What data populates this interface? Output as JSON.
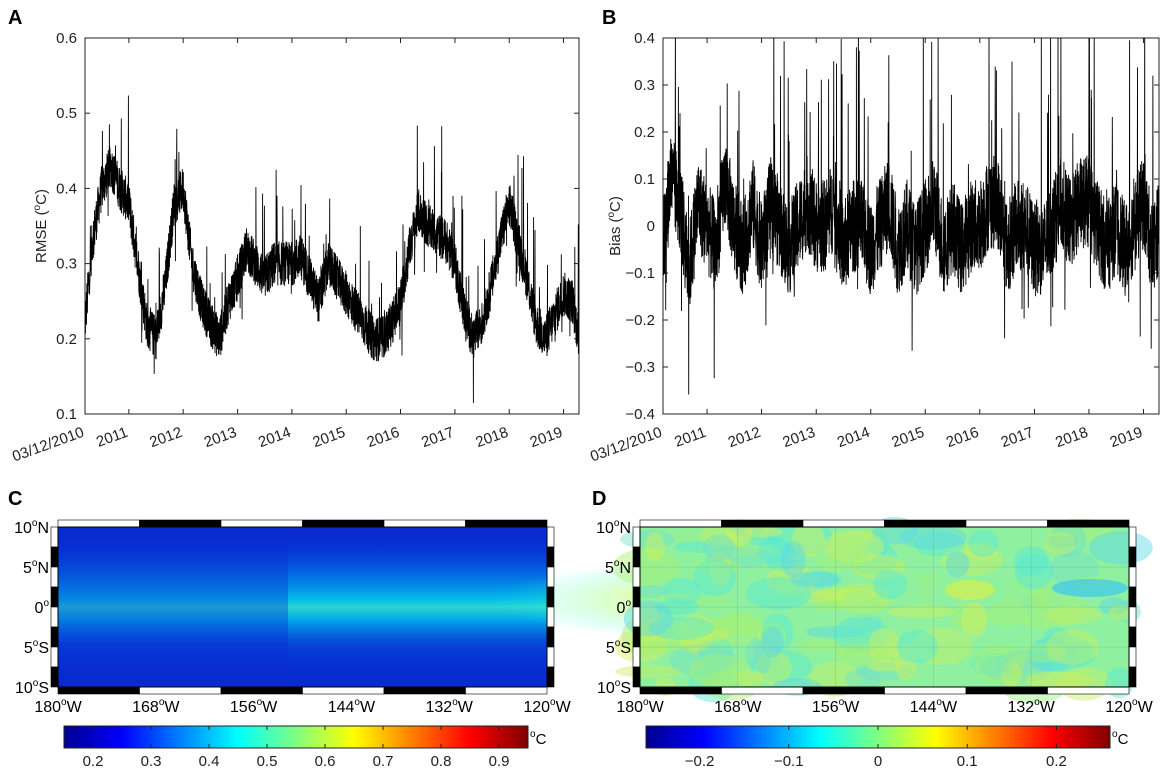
{
  "chart_data": [
    {
      "panel": "A",
      "type": "line",
      "ylabel": "RMSE (oC)",
      "ylabel_main": "RMSE (",
      "ylabel_sup": "o",
      "ylabel_end": "C)",
      "ylim": [
        0.1,
        0.6
      ],
      "yticks": [
        0.1,
        0.2,
        0.3,
        0.4,
        0.5,
        0.6
      ],
      "yticklabels": [
        "0.1",
        "0.2",
        "0.3",
        "0.4",
        "0.5",
        "0.6"
      ],
      "xlim": [
        "2010-03-12",
        "2019-04-15"
      ],
      "xticks": [
        "2010-03-12",
        "2011-01-01",
        "2012-01-01",
        "2013-01-01",
        "2014-01-01",
        "2015-01-01",
        "2016-01-01",
        "2017-01-01",
        "2018-01-01",
        "2019-01-01"
      ],
      "xticklabels": [
        "03/12/2010",
        "2011",
        "2012",
        "2013",
        "2014",
        "2015",
        "2016",
        "2017",
        "2018",
        "2019"
      ],
      "series": [
        {
          "x": [
            "2010-03-12",
            "2010-05-01",
            "2010-07-01",
            "2010-09-01",
            "2010-11-01",
            "2011-01-01",
            "2011-03-01",
            "2011-05-01",
            "2011-07-01",
            "2011-09-01",
            "2011-11-01",
            "2012-01-01",
            "2012-03-01",
            "2012-05-01",
            "2012-07-01",
            "2012-09-01",
            "2012-11-01",
            "2013-01-01",
            "2013-03-01",
            "2013-05-01",
            "2013-07-01",
            "2013-09-01",
            "2013-11-01",
            "2014-01-01",
            "2014-03-01",
            "2014-05-01",
            "2014-07-01",
            "2014-09-01",
            "2014-11-01",
            "2015-01-01",
            "2015-03-01",
            "2015-05-01",
            "2015-07-01",
            "2015-09-01",
            "2015-11-01",
            "2016-01-01",
            "2016-03-01",
            "2016-05-01",
            "2016-07-01",
            "2016-09-01",
            "2016-11-01",
            "2017-01-01",
            "2017-03-01",
            "2017-05-01",
            "2017-07-01",
            "2017-09-01",
            "2017-11-01",
            "2018-01-01",
            "2018-03-01",
            "2018-05-01",
            "2018-07-01",
            "2018-09-01",
            "2018-11-01",
            "2019-01-01",
            "2019-03-01",
            "2019-04-15"
          ],
          "y": [
            0.22,
            0.33,
            0.4,
            0.43,
            0.4,
            0.38,
            0.3,
            0.22,
            0.2,
            0.27,
            0.38,
            0.4,
            0.3,
            0.25,
            0.22,
            0.2,
            0.25,
            0.28,
            0.32,
            0.3,
            0.28,
            0.3,
            0.3,
            0.3,
            0.31,
            0.28,
            0.25,
            0.3,
            0.28,
            0.26,
            0.24,
            0.22,
            0.2,
            0.2,
            0.22,
            0.25,
            0.32,
            0.37,
            0.35,
            0.34,
            0.33,
            0.3,
            0.24,
            0.2,
            0.22,
            0.27,
            0.33,
            0.38,
            0.33,
            0.28,
            0.22,
            0.2,
            0.23,
            0.26,
            0.25,
            0.2
          ]
        }
      ]
    },
    {
      "panel": "B",
      "type": "line",
      "ylabel": "Bias (oC)",
      "ylabel_main": "Bias (",
      "ylabel_sup": "o",
      "ylabel_end": "C)",
      "ylim": [
        -0.4,
        0.4
      ],
      "yticks": [
        -0.4,
        -0.3,
        -0.2,
        -0.1,
        0,
        0.1,
        0.2,
        0.3,
        0.4
      ],
      "yticklabels": [
        "−0.4",
        "−0.3",
        "−0.2",
        "−0.1",
        "0",
        "0.1",
        "0.2",
        "0.3",
        "0.4"
      ],
      "xlim": [
        "2010-03-12",
        "2019-04-15"
      ],
      "xticks": [
        "2010-03-12",
        "2011-01-01",
        "2012-01-01",
        "2013-01-01",
        "2014-01-01",
        "2015-01-01",
        "2016-01-01",
        "2017-01-01",
        "2018-01-01",
        "2019-01-01"
      ],
      "xticklabels": [
        "03/12/2010",
        "2011",
        "2012",
        "2013",
        "2014",
        "2015",
        "2016",
        "2017",
        "2018",
        "2019"
      ],
      "series": [
        {
          "x": [
            "2010-03-12",
            "2010-05-01",
            "2010-07-01",
            "2010-09-01",
            "2010-11-01",
            "2011-01-01",
            "2011-03-01",
            "2011-05-01",
            "2011-07-01",
            "2011-09-01",
            "2011-11-01",
            "2012-01-01",
            "2012-03-01",
            "2012-05-01",
            "2012-07-01",
            "2012-09-01",
            "2012-11-01",
            "2013-01-01",
            "2013-03-01",
            "2013-05-01",
            "2013-07-01",
            "2013-09-01",
            "2013-11-01",
            "2014-01-01",
            "2014-03-01",
            "2014-05-01",
            "2014-07-01",
            "2014-09-01",
            "2014-11-01",
            "2015-01-01",
            "2015-03-01",
            "2015-05-01",
            "2015-07-01",
            "2015-09-01",
            "2015-11-01",
            "2016-01-01",
            "2016-03-01",
            "2016-05-01",
            "2016-07-01",
            "2016-09-01",
            "2016-11-01",
            "2017-01-01",
            "2017-03-01",
            "2017-05-01",
            "2017-07-01",
            "2017-09-01",
            "2017-11-01",
            "2018-01-01",
            "2018-03-01",
            "2018-05-01",
            "2018-07-01",
            "2018-09-01",
            "2018-11-01",
            "2019-01-01",
            "2019-03-01",
            "2019-04-15"
          ],
          "y": [
            -0.05,
            0.1,
            0.05,
            -0.1,
            0.05,
            0,
            -0.05,
            0.1,
            0,
            -0.05,
            0.05,
            -0.05,
            0.05,
            0,
            -0.05,
            0,
            0.05,
            0,
            0,
            0.05,
            -0.05,
            0,
            0,
            -0.05,
            0,
            0.05,
            -0.05,
            0,
            -0.05,
            0,
            0.05,
            -0.05,
            0,
            -0.05,
            0,
            0,
            0.05,
            0.05,
            -0.05,
            0,
            0,
            -0.05,
            -0.05,
            0,
            0.05,
            0,
            0.05,
            0.05,
            0,
            -0.05,
            0,
            -0.05,
            0,
            0.05,
            -0.05,
            0
          ]
        }
      ]
    },
    {
      "panel": "C",
      "type": "heatmap",
      "unit": "oC",
      "unit_sup": "o",
      "unit_end": "C",
      "xticklabels": [
        {
          "deg": "180",
          "hem": "W"
        },
        {
          "deg": "168",
          "hem": "W"
        },
        {
          "deg": "156",
          "hem": "W"
        },
        {
          "deg": "144",
          "hem": "W"
        },
        {
          "deg": "132",
          "hem": "W"
        },
        {
          "deg": "120",
          "hem": "W"
        }
      ],
      "yticklabels": [
        {
          "deg": "10",
          "hem": "N"
        },
        {
          "deg": "5",
          "hem": "N"
        },
        {
          "deg": "0",
          "hem": ""
        },
        {
          "deg": "5",
          "hem": "S"
        },
        {
          "deg": "10",
          "hem": "S"
        }
      ],
      "colorbar": {
        "range": [
          0.15,
          0.95
        ],
        "ticks": [
          0.2,
          0.3,
          0.4,
          0.5,
          0.6,
          0.7,
          0.8,
          0.9
        ],
        "ticklabels": [
          "0.2",
          "0.3",
          "0.4",
          "0.5",
          "0.6",
          "0.7",
          "0.8",
          "0.9"
        ]
      }
    },
    {
      "panel": "D",
      "type": "heatmap",
      "unit": "oC",
      "unit_sup": "o",
      "unit_end": "C",
      "xticklabels": [
        {
          "deg": "180",
          "hem": "W"
        },
        {
          "deg": "168",
          "hem": "W"
        },
        {
          "deg": "156",
          "hem": "W"
        },
        {
          "deg": "144",
          "hem": "W"
        },
        {
          "deg": "132",
          "hem": "W"
        },
        {
          "deg": "120",
          "hem": "W"
        }
      ],
      "yticklabels": [
        {
          "deg": "10",
          "hem": "N"
        },
        {
          "deg": "5",
          "hem": "N"
        },
        {
          "deg": "0",
          "hem": ""
        },
        {
          "deg": "5",
          "hem": "S"
        },
        {
          "deg": "10",
          "hem": "S"
        }
      ],
      "colorbar": {
        "range": [
          -0.26,
          0.26
        ],
        "ticks": [
          -0.2,
          -0.1,
          0,
          0.1,
          0.2
        ],
        "ticklabels": [
          "−0.2",
          "−0.1",
          "0",
          "0.1",
          "0.2"
        ]
      }
    }
  ]
}
